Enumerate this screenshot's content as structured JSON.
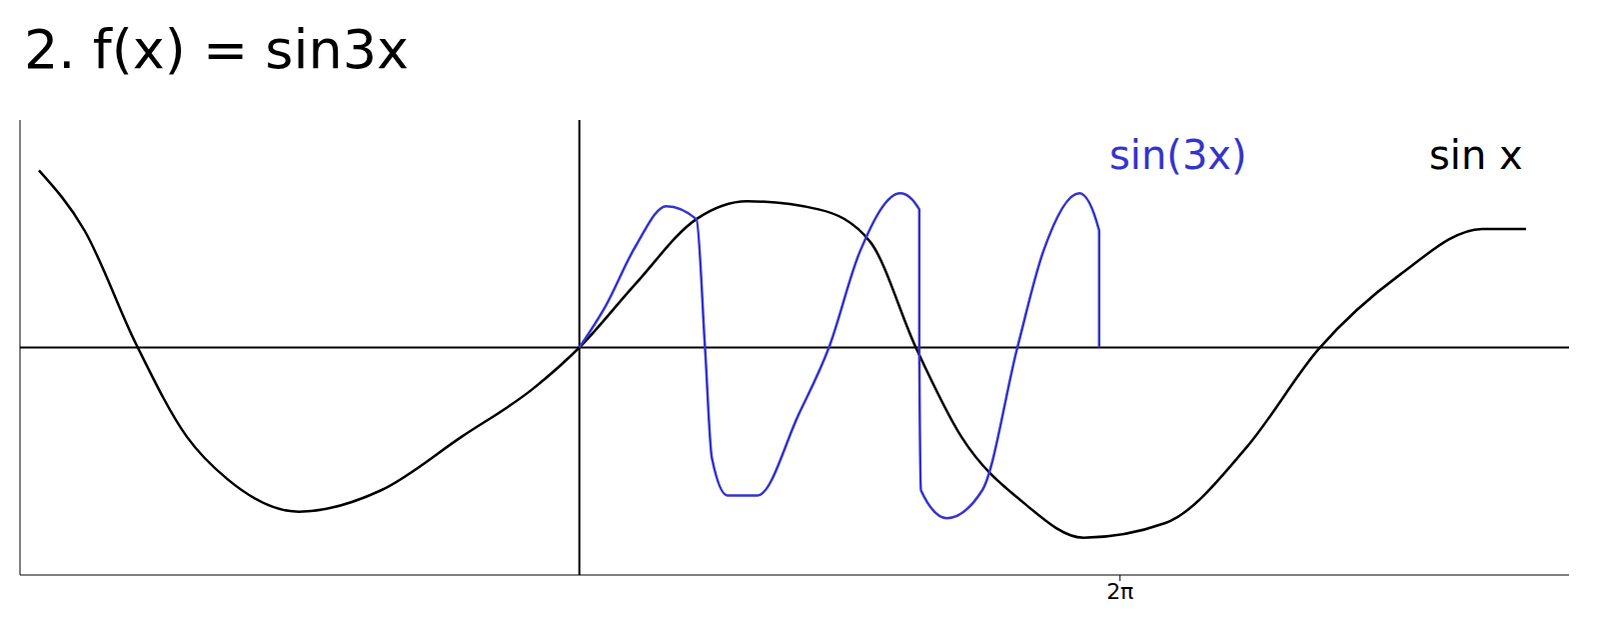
{
  "chart_data": {
    "type": "line",
    "title": "2. f(x) = sin3x",
    "xlim": [
      -6.5,
      11.5
    ],
    "ylim": [
      -1.4,
      1.4
    ],
    "xticks": [
      {
        "value": 6.283,
        "label": "2π"
      }
    ],
    "yticks": [],
    "tick_labels": "x",
    "grid": false,
    "series": [
      {
        "name": "sin x",
        "color": "#000000",
        "x": [
          -6.28,
          -5.75,
          -5.15,
          -4.56,
          -4.09,
          -3.26,
          -2.31,
          -1.37,
          -0.53,
          0,
          0.65,
          1.36,
          1.95,
          2.78,
          3.38,
          3.91,
          4.44,
          5.15,
          5.86,
          6.81,
          7.76,
          8.59,
          9.54,
          10.49,
          11.0
        ],
        "values": [
          1.09,
          0.72,
          0.02,
          -0.55,
          -0.81,
          -1.01,
          -0.88,
          -0.55,
          -0.25,
          0,
          0.39,
          0.79,
          0.9,
          0.85,
          0.65,
          0,
          -0.55,
          -0.95,
          -1.17,
          -1.08,
          -0.61,
          -0.01,
          0.45,
          0.73,
          0.73
        ]
      },
      {
        "name": "sin(3x)",
        "color": "#3434cc",
        "x": [
          0,
          0.3,
          0.65,
          1.01,
          1.36,
          1.46,
          1.54,
          1.72,
          2.07,
          2.55,
          2.9,
          3.26,
          3.73,
          3.95,
          3.95,
          3.97,
          4.27,
          4.68,
          5.09,
          5.39,
          5.81,
          6.04,
          6.04
        ],
        "values": [
          0,
          0.25,
          0.62,
          0.87,
          0.79,
          0,
          -0.68,
          -0.91,
          -0.91,
          -0.41,
          0,
          0.59,
          0.95,
          0.85,
          0,
          -0.88,
          -1.05,
          -0.88,
          0,
          0.59,
          0.95,
          0.72,
          0
        ]
      }
    ]
  }
}
